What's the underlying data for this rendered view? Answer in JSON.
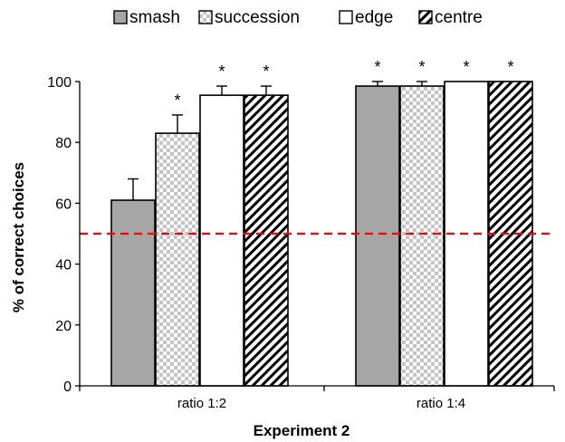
{
  "chart_data": {
    "type": "bar",
    "title": "",
    "xlabel": "Experiment 2",
    "ylabel": "% of correct choices",
    "ylim": [
      0,
      100
    ],
    "yticks": [
      0,
      20,
      40,
      60,
      80,
      100
    ],
    "categories": [
      "ratio 1:2",
      "ratio 1:4"
    ],
    "series": [
      {
        "name": "smash",
        "values": [
          61,
          98.5
        ],
        "errors": [
          7,
          1.5
        ],
        "significance": [
          "",
          "*"
        ],
        "pattern": "solid-gray"
      },
      {
        "name": "succession",
        "values": [
          83,
          98.5
        ],
        "errors": [
          6,
          1.5
        ],
        "significance": [
          "*",
          "*"
        ],
        "pattern": "checker-gray"
      },
      {
        "name": "edge",
        "values": [
          95.5,
          100
        ],
        "errors": [
          3,
          0
        ],
        "significance": [
          "*",
          "*"
        ],
        "pattern": "white"
      },
      {
        "name": "centre",
        "values": [
          95.5,
          100
        ],
        "errors": [
          3,
          0
        ],
        "significance": [
          "*",
          "*"
        ],
        "pattern": "diagonal-hatch"
      }
    ],
    "reference_line": {
      "value": 50,
      "color": "#ff0000",
      "style": "dashed"
    },
    "legend_position": "top",
    "grid": false
  }
}
